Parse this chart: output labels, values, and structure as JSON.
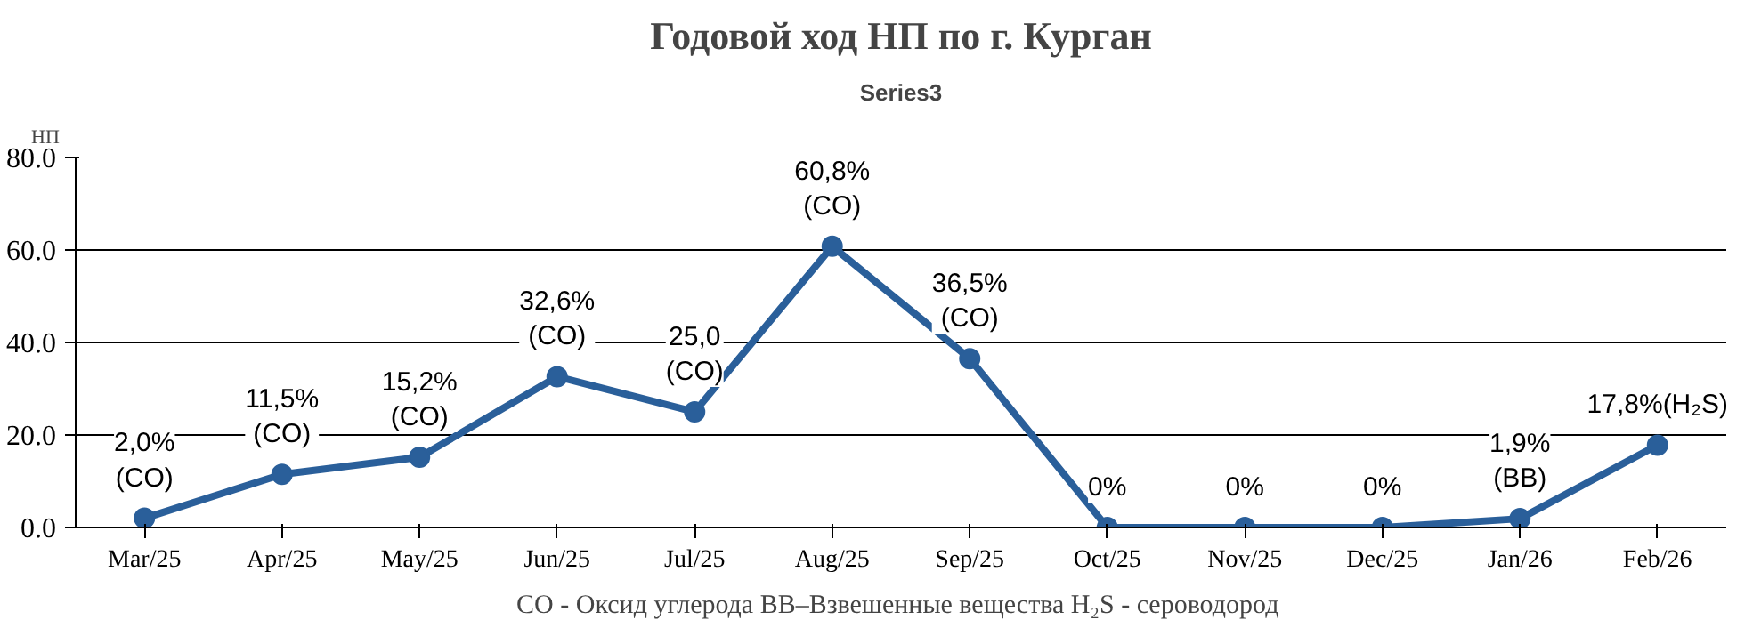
{
  "chart_data": {
    "type": "line",
    "title": "Годовой ход НП по г. Курган",
    "subtitle": "Series3",
    "ylabel": "НП",
    "categories": [
      "Mar/25",
      "Apr/25",
      "May/25",
      "Jun/25",
      "Jul/25",
      "Aug/25",
      "Sep/25",
      "Oct/25",
      "Nov/25",
      "Dec/25",
      "Jan/26",
      "Feb/26"
    ],
    "series": [
      {
        "color": "#2a5f9a",
        "values": [
          2.0,
          11.5,
          15.2,
          32.6,
          25.0,
          60.8,
          36.5,
          0,
          0,
          0,
          1.9,
          17.8
        ],
        "value_labels": [
          "2,0%\n(CO)",
          "11,5%\n(CO)",
          "15,2%\n(CO)",
          "32,6%\n(CO)",
          "25,0\n(CO)",
          "60,8%\n(CO)",
          "36,5%\n(CO)",
          "0%",
          "0%",
          "0%",
          "1,9%\n(BB)",
          "17,8%(H₂S)"
        ]
      }
    ],
    "ylim": [
      0,
      80
    ],
    "yticks": [
      {
        "value": 0,
        "label": "0.0"
      },
      {
        "value": 20,
        "label": "20.0"
      },
      {
        "value": 40,
        "label": "40.0"
      },
      {
        "value": 60,
        "label": "60.0"
      },
      {
        "value": 80,
        "label": "80.0"
      }
    ],
    "grid": "y",
    "marker": "circle",
    "line_style": "solid",
    "annotations": [
      "СО - Оксид углерода  ВВ–Взвешенные вещества H₂S - сероводород"
    ]
  }
}
